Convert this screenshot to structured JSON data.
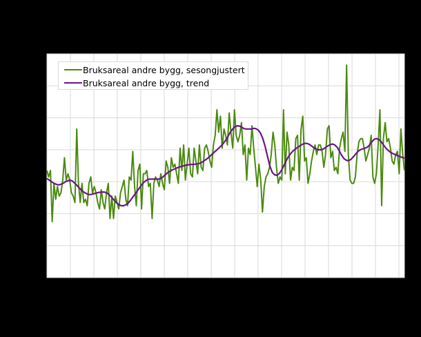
{
  "chart_data": {
    "type": "line",
    "title": "",
    "xlabel": "",
    "ylabel": "",
    "background": "#000000",
    "plot_background": "#ffffff",
    "grid": true,
    "grid_color": "#d9d9d9",
    "legend_position": "upper-left inside plot",
    "y_gridlines": 7,
    "x_gridlines": 15,
    "ylim": [
      0,
      7
    ],
    "ytick_labels": [],
    "xtick_labels": [],
    "note": "Axis tick labels are rendered black on black and not readable; values expressed in gridline units (0 = bottom axis, 7 = top).",
    "series": [
      {
        "name": "Bruksareal andre bygg, sesongjustert",
        "color": "#4a8a0f",
        "values": [
          3.35,
          3.15,
          3.35,
          1.75,
          2.95,
          2.45,
          2.85,
          2.55,
          2.65,
          3.05,
          3.75,
          3.05,
          3.25,
          3.05,
          2.65,
          2.55,
          2.35,
          4.65,
          2.95,
          2.35,
          2.95,
          2.35,
          2.45,
          2.25,
          2.95,
          3.15,
          2.65,
          2.85,
          2.65,
          2.35,
          2.15,
          2.75,
          2.35,
          2.15,
          2.65,
          2.95,
          1.85,
          2.55,
          1.85,
          2.55,
          2.35,
          2.15,
          2.65,
          2.85,
          3.05,
          2.45,
          2.25,
          3.15,
          3.05,
          3.95,
          2.85,
          2.25,
          3.35,
          3.55,
          2.15,
          3.25,
          3.25,
          3.35,
          2.85,
          2.95,
          1.85,
          2.95,
          3.15,
          3.05,
          2.85,
          3.25,
          2.95,
          2.75,
          3.65,
          3.45,
          2.95,
          3.75,
          3.45,
          3.55,
          3.25,
          2.95,
          4.05,
          3.35,
          4.15,
          3.05,
          3.55,
          4.05,
          3.25,
          3.15,
          4.05,
          3.65,
          3.25,
          4.15,
          3.45,
          3.35,
          4.05,
          4.15,
          3.95,
          3.65,
          3.45,
          4.15,
          4.45,
          5.25,
          4.55,
          5.05,
          4.05,
          4.65,
          4.45,
          4.15,
          5.15,
          4.55,
          4.05,
          5.25,
          4.45,
          4.25,
          4.45,
          4.85,
          3.85,
          4.15,
          3.05,
          4.05,
          3.85,
          4.75,
          4.05,
          3.45,
          2.85,
          3.55,
          3.05,
          2.05,
          2.85,
          3.15,
          3.25,
          3.45,
          3.85,
          4.55,
          4.15,
          3.45,
          2.95,
          3.15,
          3.05,
          5.25,
          3.25,
          4.55,
          4.15,
          3.05,
          3.45,
          3.35,
          4.35,
          4.45,
          3.05,
          4.65,
          5.05,
          3.65,
          3.75,
          2.95,
          3.25,
          3.65,
          3.95,
          4.15,
          3.85,
          4.15,
          4.15,
          3.95,
          3.45,
          3.85,
          4.65,
          4.75,
          3.75,
          3.95,
          3.35,
          3.45,
          3.25,
          4.05,
          4.35,
          4.55,
          3.95,
          6.65,
          3.85,
          3.05,
          2.95,
          2.95,
          3.15,
          3.85,
          4.25,
          4.35,
          4.35,
          4.05,
          3.65,
          3.85,
          4.05,
          4.45,
          3.15,
          2.95,
          3.25,
          4.15,
          5.25,
          2.25,
          4.35,
          4.85,
          4.25,
          4.35,
          4.05,
          3.65,
          3.55,
          3.85,
          3.95,
          3.25,
          4.65,
          3.85,
          3.35
        ]
      },
      {
        "name": "Bruksareal andre bygg, trend",
        "color": "#6b1489",
        "values": [
          3.1,
          3.05,
          3.0,
          2.95,
          2.92,
          2.9,
          2.92,
          2.95,
          3.0,
          3.03,
          3.05,
          3.02,
          2.95,
          2.88,
          2.8,
          2.72,
          2.67,
          2.63,
          2.6,
          2.6,
          2.62,
          2.64,
          2.66,
          2.67,
          2.68,
          2.67,
          2.64,
          2.58,
          2.5,
          2.42,
          2.34,
          2.28,
          2.25,
          2.25,
          2.28,
          2.33,
          2.42,
          2.52,
          2.62,
          2.72,
          2.82,
          2.92,
          3.0,
          3.05,
          3.08,
          3.08,
          3.08,
          3.08,
          3.08,
          3.1,
          3.15,
          3.22,
          3.28,
          3.33,
          3.37,
          3.4,
          3.43,
          3.46,
          3.48,
          3.5,
          3.52,
          3.53,
          3.54,
          3.54,
          3.55,
          3.56,
          3.58,
          3.62,
          3.67,
          3.72,
          3.78,
          3.85,
          3.92,
          3.98,
          4.05,
          4.12,
          4.2,
          4.3,
          4.42,
          4.55,
          4.65,
          4.72,
          4.75,
          4.74,
          4.7,
          4.66,
          4.65,
          4.65,
          4.65,
          4.67,
          4.66,
          4.62,
          4.52,
          4.35,
          4.1,
          3.8,
          3.5,
          3.3,
          3.22,
          3.2,
          3.25,
          3.35,
          3.5,
          3.65,
          3.78,
          3.88,
          3.96,
          4.02,
          4.08,
          4.12,
          4.17,
          4.2,
          4.2,
          4.17,
          4.12,
          4.06,
          4.02,
          4.0,
          4.0,
          4.02,
          4.07,
          4.12,
          4.16,
          4.18,
          4.15,
          4.08,
          3.96,
          3.82,
          3.72,
          3.67,
          3.66,
          3.7,
          3.78,
          3.87,
          3.95,
          4.0,
          4.03,
          4.05,
          4.08,
          4.15,
          4.25,
          4.33,
          4.35,
          4.32,
          4.25,
          4.15,
          4.05,
          3.98,
          3.92,
          3.88,
          3.85,
          3.82,
          3.79,
          3.76,
          3.74
        ]
      }
    ]
  },
  "legend": {
    "items": [
      {
        "label": "Bruksareal andre bygg, sesongjustert",
        "color": "#4a8a0f"
      },
      {
        "label": "Bruksareal andre bygg, trend",
        "color": "#6b1489"
      }
    ]
  }
}
